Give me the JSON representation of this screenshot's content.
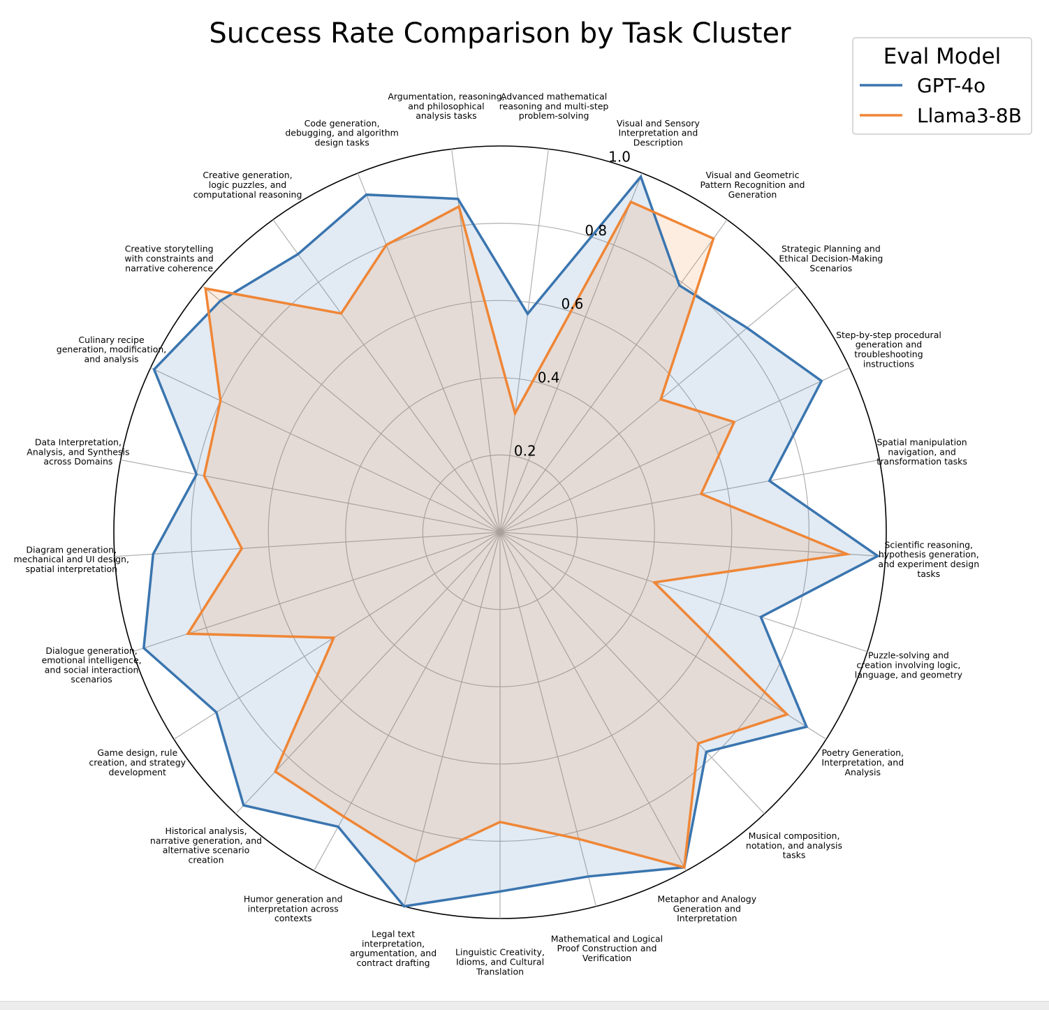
{
  "chart_data": {
    "type": "radar",
    "title": "Success Rate Comparison by Task Cluster",
    "rlim": [
      0,
      1.0
    ],
    "rticks": [
      0.2,
      0.4,
      0.6,
      0.8,
      1.0
    ],
    "rtick_labels": [
      "0.2",
      "0.4",
      "0.6",
      "0.8",
      "1.0"
    ],
    "grid": true,
    "legend": {
      "title": "Eval Model",
      "placement": "top-right"
    },
    "categories": [
      [
        "Advanced mathematical",
        "reasoning and multi-step",
        "problem-solving"
      ],
      [
        "Argumentation, reasoning,",
        "and philosophical",
        "analysis tasks"
      ],
      [
        "Code generation,",
        "debugging, and algorithm",
        "design tasks"
      ],
      [
        "Creative generation,",
        "logic puzzles, and",
        "computational reasoning"
      ],
      [
        "Creative storytelling",
        "with constraints and",
        "narrative coherence"
      ],
      [
        "Culinary recipe",
        "generation, modification,",
        "and analysis"
      ],
      [
        "Data Interpretation,",
        "Analysis, and Synthesis",
        "across Domains"
      ],
      [
        "Diagram generation,",
        "mechanical and UI design,",
        "spatial interpretation"
      ],
      [
        "Dialogue generation,",
        "emotional intelligence,",
        "and social interaction",
        "scenarios"
      ],
      [
        "Game design, rule",
        "creation, and strategy",
        "development"
      ],
      [
        "Historical analysis,",
        "narrative generation, and",
        "alternative scenario",
        "creation"
      ],
      [
        "Humor generation and",
        "interpretation across",
        "contexts"
      ],
      [
        "Legal text",
        "interpretation,",
        "argumentation, and",
        "contract drafting"
      ],
      [
        "Linguistic Creativity,",
        "Idioms, and Cultural",
        "Translation"
      ],
      [
        "Mathematical and Logical",
        "Proof Construction and",
        "Verification"
      ],
      [
        "Metaphor and Analogy",
        "Generation and",
        "Interpretation"
      ],
      [
        "Musical composition,",
        "notation, and analysis",
        "tasks"
      ],
      [
        "Poetry Generation,",
        "Interpretation, and",
        "Analysis"
      ],
      [
        "Puzzle-solving and",
        "creation involving logic,",
        "language, and geometry"
      ],
      [
        "Scientific reasoning,",
        "hypothesis generation,",
        "and experiment design",
        "tasks"
      ],
      [
        "Spatial manipulation",
        "navigation, and",
        "transformation tasks"
      ],
      [
        "Step-by-step procedural",
        "generation and",
        "troubleshooting",
        "instructions"
      ],
      [
        "Strategic Planning and",
        "Ethical Decision-Making",
        "Scenarios"
      ],
      [
        "Visual and Geometric",
        "Pattern Recognition and",
        "Generation"
      ],
      [
        "Visual and Sensory",
        "Interpretation and",
        "Description"
      ]
    ],
    "series": [
      {
        "name": "GPT-4o",
        "color": "#3a75af",
        "values": [
          0.57,
          0.87,
          0.94,
          0.89,
          0.94,
          0.99,
          0.8,
          0.9,
          0.97,
          0.87,
          0.97,
          0.87,
          1.0,
          0.93,
          0.92,
          0.99,
          0.78,
          0.94,
          0.71,
          0.98,
          0.71,
          0.92,
          0.83,
          0.79,
          0.99
        ]
      },
      {
        "name": "Llama3-8B",
        "color": "#ef8636",
        "values": [
          0.31,
          0.85,
          0.8,
          0.7,
          0.99,
          0.8,
          0.78,
          0.67,
          0.85,
          0.51,
          0.85,
          0.84,
          0.88,
          0.75,
          0.82,
          0.99,
          0.75,
          0.88,
          0.42,
          0.9,
          0.53,
          0.67,
          0.54,
          0.94,
          0.92
        ]
      }
    ]
  }
}
